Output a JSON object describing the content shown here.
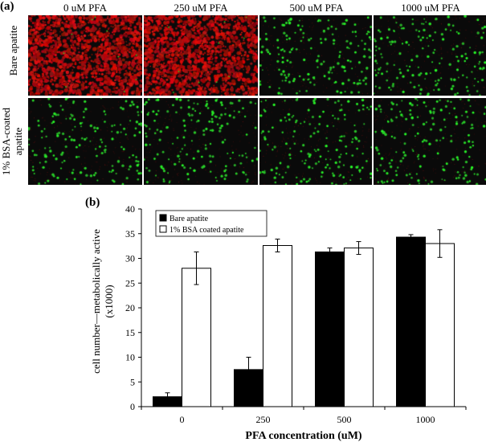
{
  "figure": {
    "panel_a_label": "(a)",
    "panel_b_label": "(b)",
    "columns": [
      "0 uM PFA",
      "250 uM PFA",
      "500 uM PFA",
      "1000 uM PFA"
    ],
    "rows": [
      {
        "label_line1": "Bare apatite",
        "label_line2": ""
      },
      {
        "label_line1": "1% BSA-coated",
        "label_line2": "apatite"
      }
    ],
    "stain_colors": {
      "dead": "#d01818",
      "live": "#22e022",
      "background": "#0a0a0a"
    },
    "image_panels": [
      [
        {
          "dominant": "red"
        },
        {
          "dominant": "red"
        },
        {
          "dominant": "green"
        },
        {
          "dominant": "green"
        }
      ],
      [
        {
          "dominant": "green"
        },
        {
          "dominant": "green"
        },
        {
          "dominant": "green"
        },
        {
          "dominant": "green"
        }
      ]
    ]
  },
  "chart_data": {
    "type": "bar",
    "title": "",
    "xlabel": "PFA concentration (uM)",
    "ylabel_line1": "cell number—metabolically active",
    "ylabel_line2": "(x1000)",
    "categories": [
      "0",
      "250",
      "500",
      "1000"
    ],
    "ylim": [
      0,
      40
    ],
    "yticks": [
      "0",
      "5",
      "10",
      "15",
      "20",
      "25",
      "30",
      "35",
      "40"
    ],
    "legend_position": "top-left",
    "series": [
      {
        "name": "Bare apatite",
        "color": "#000000",
        "values": [
          2.0,
          7.5,
          31.3,
          34.3
        ],
        "errors": [
          0.8,
          2.5,
          0.8,
          0.5
        ]
      },
      {
        "name": "1% BSA coated apatite",
        "color": "#ffffff",
        "values": [
          28.0,
          32.6,
          32.1,
          33.0
        ],
        "errors": [
          3.3,
          1.3,
          1.3,
          2.8
        ]
      }
    ]
  }
}
